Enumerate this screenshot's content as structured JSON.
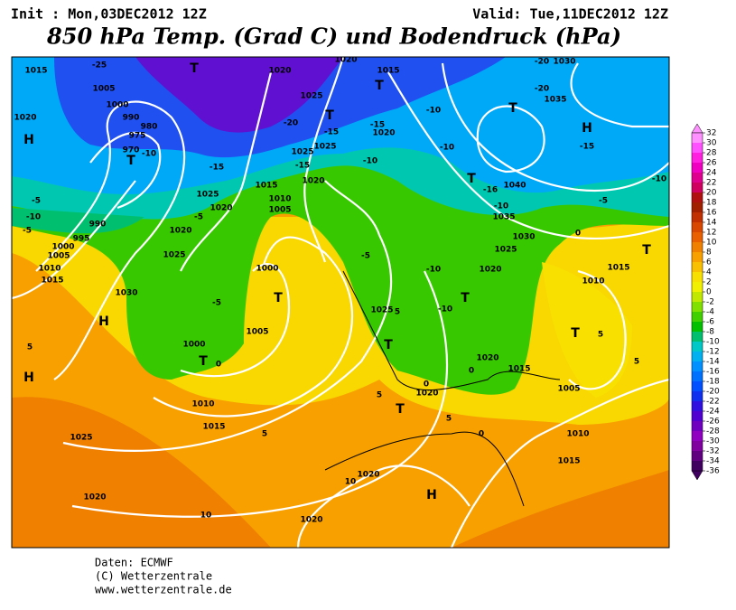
{
  "header": {
    "init": "Init : Mon,03DEC2012 12Z",
    "valid": "Valid: Tue,11DEC2012 12Z",
    "title": "850 hPa Temp. (Grad C) und Bodendruck (hPa)"
  },
  "footer": {
    "source": "Daten: ECMWF",
    "copyright": "(C) Wetterzentrale",
    "url": "www.wetterzentrale.de"
  },
  "colorbar": {
    "ticks": [
      32,
      30,
      28,
      26,
      24,
      22,
      20,
      18,
      16,
      14,
      12,
      10,
      8,
      6,
      4,
      2,
      0,
      -2,
      -4,
      -6,
      -8,
      -10,
      -12,
      -14,
      -16,
      -18,
      -20,
      -22,
      -24,
      -26,
      -28,
      -30,
      -32,
      -34,
      -36
    ],
    "colors": [
      "#ff90ff",
      "#ff50ff",
      "#ff20e0",
      "#f000c0",
      "#e00090",
      "#d00060",
      "#b01010",
      "#a02000",
      "#c03000",
      "#d84800",
      "#e86000",
      "#f08000",
      "#f8a000",
      "#f8c000",
      "#f8e000",
      "#f0f000",
      "#c0e800",
      "#80e000",
      "#40d000",
      "#00c000",
      "#00c070",
      "#00c8c8",
      "#00b0f0",
      "#0090ff",
      "#0070ff",
      "#0050ff",
      "#1030f0",
      "#3010e0",
      "#5000d0",
      "#7000c0",
      "#9000c0",
      "#8000a0",
      "#600080",
      "#400060"
    ]
  },
  "map": {
    "labels": [
      "1015",
      "-25",
      "T",
      "1020",
      "1020",
      "1015",
      "-20",
      "1030",
      "1035",
      "H",
      "-20",
      "1020",
      "H",
      "1005",
      "1000",
      "990",
      "980",
      "975",
      "970",
      "T",
      "-10",
      "-15",
      "1025",
      "-20",
      "-15",
      "-15",
      "1020",
      "T",
      "T",
      "-10",
      "T",
      "-10",
      "-10",
      "1025",
      "1025",
      "-15",
      "1020",
      "-15",
      "1015",
      "1010",
      "1005",
      "1025",
      "1020",
      "-5",
      "1020",
      "990",
      "995",
      "1000",
      "1005",
      "1010",
      "1015",
      "-10",
      "-5",
      "-5",
      "T",
      "-16",
      "1040",
      "-10",
      "-5",
      "-10",
      "1035",
      "1030",
      "1025",
      "1020",
      "0",
      "T",
      "1015",
      "1010",
      "-5",
      "-10",
      "-10",
      "T",
      "1025",
      "5",
      "1030",
      "1025",
      "1000",
      "T",
      "-5",
      "H",
      "1005",
      "1000",
      "T",
      "0",
      "1010",
      "1015",
      "5",
      "1025",
      "H",
      "5",
      "T",
      "1020",
      "1015",
      "0",
      "1005",
      "T",
      "5",
      "5",
      "0",
      "1020",
      "5",
      "T",
      "5",
      "0",
      "1010",
      "1015",
      "1020",
      "10",
      "H",
      "1020",
      "10",
      "1020"
    ]
  }
}
